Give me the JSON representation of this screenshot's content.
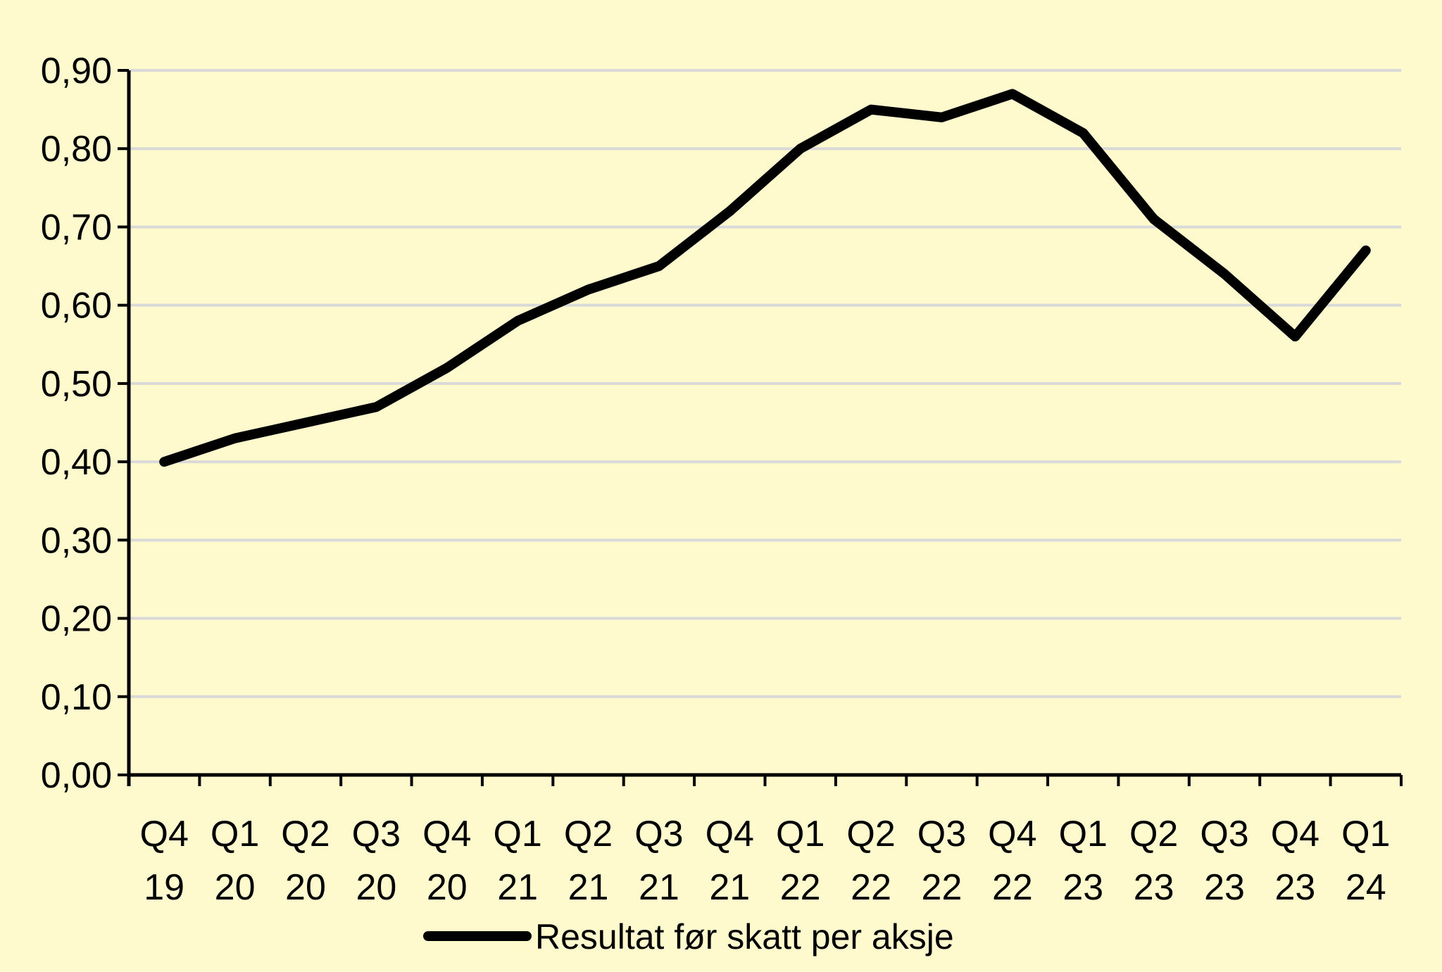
{
  "chart_data": {
    "type": "line",
    "categories": [
      [
        "Q4",
        "19"
      ],
      [
        "Q1",
        "20"
      ],
      [
        "Q2",
        "20"
      ],
      [
        "Q3",
        "20"
      ],
      [
        "Q4",
        "20"
      ],
      [
        "Q1",
        "21"
      ],
      [
        "Q2",
        "21"
      ],
      [
        "Q3",
        "21"
      ],
      [
        "Q4",
        "21"
      ],
      [
        "Q1",
        "22"
      ],
      [
        "Q2",
        "22"
      ],
      [
        "Q3",
        "22"
      ],
      [
        "Q4",
        "22"
      ],
      [
        "Q1",
        "23"
      ],
      [
        "Q2",
        "23"
      ],
      [
        "Q3",
        "23"
      ],
      [
        "Q4",
        "23"
      ],
      [
        "Q1",
        "24"
      ]
    ],
    "series": [
      {
        "name": "Resultat før skatt per aksje",
        "color": "#000000",
        "values": [
          0.4,
          0.43,
          0.45,
          0.47,
          0.52,
          0.58,
          0.62,
          0.65,
          0.72,
          0.8,
          0.85,
          0.84,
          0.87,
          0.82,
          0.71,
          0.64,
          0.56,
          0.67
        ]
      }
    ],
    "y_ticks": [
      "0,00",
      "0,10",
      "0,20",
      "0,30",
      "0,40",
      "0,50",
      "0,60",
      "0,70",
      "0,80",
      "0,90"
    ],
    "ylim": [
      0,
      0.9
    ],
    "grid": true,
    "grid_color": "#d9d9d9",
    "background": "#fffacd",
    "legend_position": "bottom"
  }
}
